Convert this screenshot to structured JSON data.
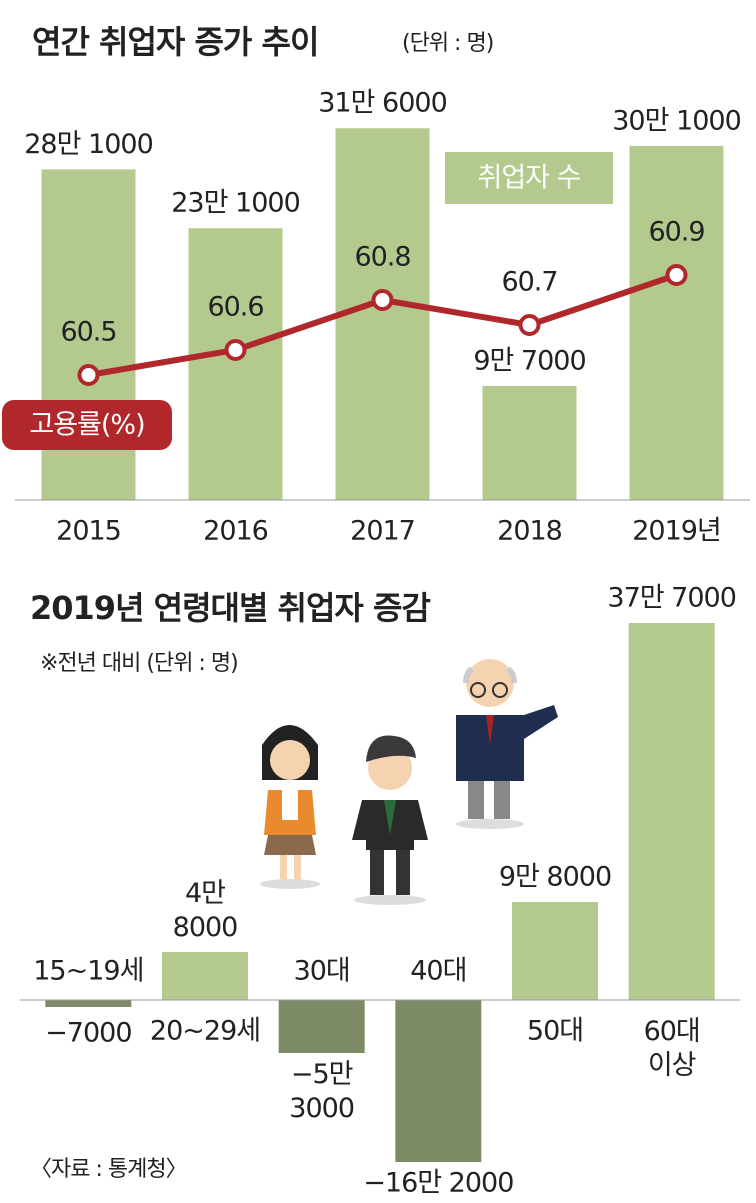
{
  "chart_data": [
    {
      "type": "combo",
      "title": "연간 취업자 증가 추이",
      "subtitle": "(단위 : 명)",
      "categories": [
        "2015",
        "2016",
        "2017",
        "2018",
        "2019년"
      ],
      "series": [
        {
          "name": "취업자 수",
          "color": "#b4c98d",
          "kind": "bar",
          "values": [
            281000,
            231000,
            316000,
            97000,
            301000
          ],
          "value_labels": [
            "28만 1000",
            "23만 1000",
            "31만 6000",
            "9만 7000",
            "30만 1000"
          ]
        },
        {
          "name": "고용률(%)",
          "color": "#b0282b",
          "kind": "line",
          "axis": "y2",
          "values": [
            60.5,
            60.6,
            60.8,
            60.7,
            60.9
          ]
        }
      ],
      "ylim": [
        0,
        340000
      ],
      "y2lim": [
        60,
        61.6
      ]
    },
    {
      "type": "bar",
      "title": "2019년 연령대별 취업자 증감",
      "subtitle": "※전년 대비 (단위 : 명)",
      "categories": [
        "15~19세",
        "20~29세",
        "30대",
        "40대",
        "50대",
        "60대\n이상"
      ],
      "values": [
        -7000,
        48000,
        -53000,
        -162000,
        98000,
        377000
      ],
      "value_labels": [
        "−7000",
        "4만\n8000",
        "−5만\n3000",
        "−16만 2000",
        "9만 8000",
        "37만 7000"
      ],
      "color": "#b4c98d",
      "negative_color": "#7d8b66",
      "ylim": [
        -170000,
        400000
      ],
      "source": "〈자료 : 통계청〉"
    }
  ]
}
